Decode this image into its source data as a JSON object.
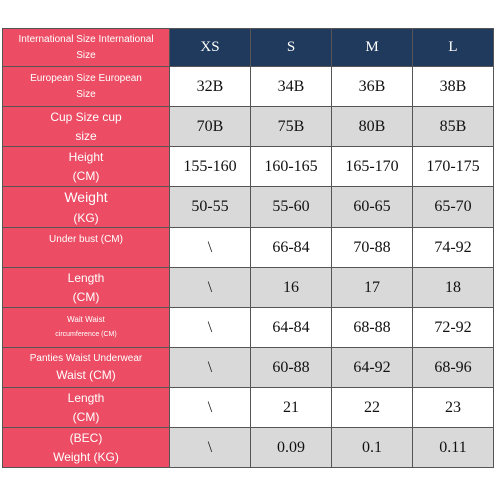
{
  "header": {
    "label_line1": "International Size International",
    "label_line2": "Size",
    "sizes": [
      "XS",
      "S",
      "M",
      "L"
    ]
  },
  "rows": [
    {
      "line1": "European Size European",
      "line2": "Size",
      "values": [
        "32B",
        "34B",
        "36B",
        "38B"
      ]
    },
    {
      "line1": "Cup Size cup",
      "line2": "size",
      "values": [
        "70B",
        "75B",
        "80B",
        "85B"
      ]
    },
    {
      "line1": "Height",
      "line2": "(CM)",
      "values": [
        "155-160",
        "160-165",
        "165-170",
        "170-175"
      ]
    },
    {
      "line1": "Weight",
      "line2": "(KG)",
      "values": [
        "50-55",
        "55-60",
        "60-65",
        "65-70"
      ]
    },
    {
      "line1": "Under bust (CM)",
      "line2": "",
      "values": [
        "\\",
        "66-84",
        "70-88",
        "74-92"
      ]
    },
    {
      "line1": "Length",
      "line2": "(CM)",
      "values": [
        "\\",
        "16",
        "17",
        "18"
      ]
    },
    {
      "line1": "Wait Waist",
      "line2": "circumference (CM)",
      "values": [
        "\\",
        "64-84",
        "68-88",
        "72-92"
      ]
    },
    {
      "line1": "Panties Waist Underwear",
      "line2": "Waist (CM)",
      "values": [
        "\\",
        "60-88",
        "64-92",
        "68-96"
      ]
    },
    {
      "line1": "Length",
      "line2": "(CM)",
      "values": [
        "\\",
        "21",
        "22",
        "23"
      ]
    },
    {
      "line1": "(BEC)",
      "line2": "Weight (KG)",
      "values": [
        "\\",
        "0.09",
        "0.1",
        "0.11"
      ]
    }
  ],
  "colors": {
    "label_bg": "#ec4d64",
    "header_bg": "#1f3a5c",
    "gray_cell": "#d9d9d9",
    "white_cell": "#ffffff"
  }
}
